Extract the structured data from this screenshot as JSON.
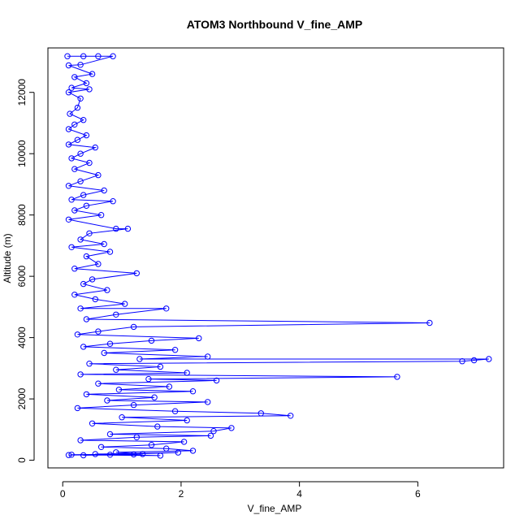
{
  "chart_data": {
    "type": "line",
    "title": "ATOM3 Northbound V_fine_AMP",
    "xlabel": "V_fine_AMP",
    "ylabel": "Altitude (m)",
    "xlim": [
      -0.25,
      7.45
    ],
    "ylim": [
      -250,
      13450
    ],
    "xticks": [
      0,
      2,
      4,
      6
    ],
    "yticks": [
      0,
      2000,
      4000,
      6000,
      8000,
      10000,
      12000
    ],
    "color": "#0000ff",
    "markers": "open-circle",
    "series": [
      {
        "points": [
          [
            0.08,
            13180
          ],
          [
            0.35,
            13180
          ],
          [
            0.6,
            13180
          ],
          [
            0.85,
            13180
          ],
          [
            0.3,
            12900
          ],
          [
            0.1,
            12880
          ],
          [
            0.5,
            12600
          ],
          [
            0.2,
            12500
          ],
          [
            0.4,
            12300
          ],
          [
            0.15,
            12150
          ],
          [
            0.45,
            12100
          ],
          [
            0.1,
            12000
          ],
          [
            0.3,
            11800
          ],
          [
            0.25,
            11500
          ],
          [
            0.12,
            11300
          ],
          [
            0.35,
            11100
          ],
          [
            0.2,
            10950
          ],
          [
            0.1,
            10800
          ],
          [
            0.4,
            10600
          ],
          [
            0.25,
            10450
          ],
          [
            0.1,
            10300
          ],
          [
            0.55,
            10200
          ],
          [
            0.3,
            10000
          ],
          [
            0.15,
            9850
          ],
          [
            0.45,
            9700
          ],
          [
            0.2,
            9500
          ],
          [
            0.6,
            9300
          ],
          [
            0.3,
            9100
          ],
          [
            0.1,
            8950
          ],
          [
            0.7,
            8800
          ],
          [
            0.35,
            8650
          ],
          [
            0.15,
            8500
          ],
          [
            0.85,
            8450
          ],
          [
            0.4,
            8300
          ],
          [
            0.2,
            8150
          ],
          [
            0.65,
            8000
          ],
          [
            0.1,
            7850
          ],
          [
            0.9,
            7550
          ],
          [
            1.1,
            7550
          ],
          [
            0.45,
            7400
          ],
          [
            0.3,
            7200
          ],
          [
            0.7,
            7050
          ],
          [
            0.15,
            6950
          ],
          [
            0.8,
            6800
          ],
          [
            0.4,
            6650
          ],
          [
            0.6,
            6400
          ],
          [
            0.2,
            6250
          ],
          [
            1.25,
            6100
          ],
          [
            0.5,
            5900
          ],
          [
            0.35,
            5750
          ],
          [
            0.75,
            5550
          ],
          [
            0.2,
            5400
          ],
          [
            0.55,
            5250
          ],
          [
            1.05,
            5100
          ],
          [
            0.3,
            4950
          ],
          [
            1.75,
            4950
          ],
          [
            0.9,
            4750
          ],
          [
            0.4,
            4600
          ],
          [
            6.2,
            4480
          ],
          [
            1.2,
            4350
          ],
          [
            0.6,
            4200
          ],
          [
            0.25,
            4100
          ],
          [
            2.3,
            3980
          ],
          [
            1.5,
            3900
          ],
          [
            0.8,
            3800
          ],
          [
            0.35,
            3700
          ],
          [
            1.9,
            3600
          ],
          [
            0.7,
            3500
          ],
          [
            2.45,
            3380
          ],
          [
            1.3,
            3300
          ],
          [
            7.2,
            3300
          ],
          [
            6.95,
            3260
          ],
          [
            6.75,
            3230
          ],
          [
            0.45,
            3150
          ],
          [
            1.65,
            3050
          ],
          [
            0.9,
            2950
          ],
          [
            2.1,
            2850
          ],
          [
            0.3,
            2800
          ],
          [
            5.65,
            2720
          ],
          [
            1.45,
            2650
          ],
          [
            2.6,
            2600
          ],
          [
            0.6,
            2500
          ],
          [
            1.8,
            2400
          ],
          [
            0.95,
            2300
          ],
          [
            2.2,
            2250
          ],
          [
            0.4,
            2150
          ],
          [
            1.55,
            2050
          ],
          [
            0.75,
            1950
          ],
          [
            2.45,
            1900
          ],
          [
            1.2,
            1800
          ],
          [
            0.25,
            1700
          ],
          [
            1.9,
            1600
          ],
          [
            3.35,
            1530
          ],
          [
            3.85,
            1450
          ],
          [
            1.0,
            1400
          ],
          [
            2.1,
            1300
          ],
          [
            0.5,
            1200
          ],
          [
            1.6,
            1100
          ],
          [
            2.85,
            1050
          ],
          [
            2.55,
            950
          ],
          [
            0.8,
            850
          ],
          [
            2.5,
            800
          ],
          [
            1.25,
            750
          ],
          [
            0.3,
            650
          ],
          [
            2.05,
            600
          ],
          [
            1.5,
            500
          ],
          [
            0.65,
            430
          ],
          [
            1.75,
            380
          ],
          [
            2.2,
            310
          ],
          [
            0.9,
            260
          ],
          [
            1.35,
            200
          ],
          [
            0.15,
            180
          ],
          [
            1.65,
            150
          ],
          [
            0.55,
            200
          ],
          [
            1.95,
            250
          ],
          [
            0.8,
            180
          ],
          [
            0.35,
            160
          ],
          [
            1.2,
            190
          ],
          [
            0.1,
            170
          ]
        ]
      }
    ]
  }
}
